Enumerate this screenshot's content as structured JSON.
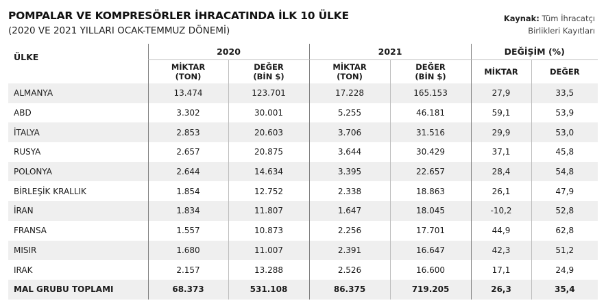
{
  "header": {
    "title": "POMPALAR VE KOMPRESÖRLER İHRACATINDA İLK 10 ÜLKE",
    "subtitle": "(2020 VE 2021 YILLARI OCAK-TEMMUZ DÖNEMİ)",
    "source_label": "Kaynak:",
    "source_line1": "Tüm İhracatçı",
    "source_line2": "Birlikleri Kayıtları"
  },
  "table": {
    "country_header": "ÜLKE",
    "groups": [
      "2020",
      "2021",
      "DEĞİŞİM (%)"
    ],
    "sub": {
      "miktar_ton_1": "MİKTAR",
      "miktar_ton_2": "(TON)",
      "deger_bin_1": "DEĞER",
      "deger_bin_2": "(BİN $)",
      "miktar": "MİKTAR",
      "deger": "DEĞER"
    },
    "rows": [
      [
        "ALMANYA",
        "13.474",
        "123.701",
        "17.228",
        "165.153",
        "27,9",
        "33,5"
      ],
      [
        "ABD",
        "3.302",
        "30.001",
        "5.255",
        "46.181",
        "59,1",
        "53,9"
      ],
      [
        "İTALYA",
        "2.853",
        "20.603",
        "3.706",
        "31.516",
        "29,9",
        "53,0"
      ],
      [
        "RUSYA",
        "2.657",
        "20.875",
        "3.644",
        "30.429",
        "37,1",
        "45,8"
      ],
      [
        "POLONYA",
        "2.644",
        "14.634",
        "3.395",
        "22.657",
        "28,4",
        "54,8"
      ],
      [
        "BİRLEŞİK KRALLIK",
        "1.854",
        "12.752",
        "2.338",
        "18.863",
        "26,1",
        "47,9"
      ],
      [
        "İRAN",
        "1.834",
        "11.807",
        "1.647",
        "18.045",
        "-10,2",
        "52,8"
      ],
      [
        "FRANSA",
        "1.557",
        "10.873",
        "2.256",
        "17.701",
        "44,9",
        "62,8"
      ],
      [
        "MISIR",
        "1.680",
        "11.007",
        "2.391",
        "16.647",
        "42,3",
        "51,2"
      ],
      [
        "IRAK",
        "2.157",
        "13.288",
        "2.526",
        "16.600",
        "17,1",
        "24,9"
      ]
    ],
    "total": [
      "MAL GRUBU TOPLAMI",
      "68.373",
      "531.108",
      "86.375",
      "719.205",
      "26,3",
      "35,4"
    ]
  }
}
